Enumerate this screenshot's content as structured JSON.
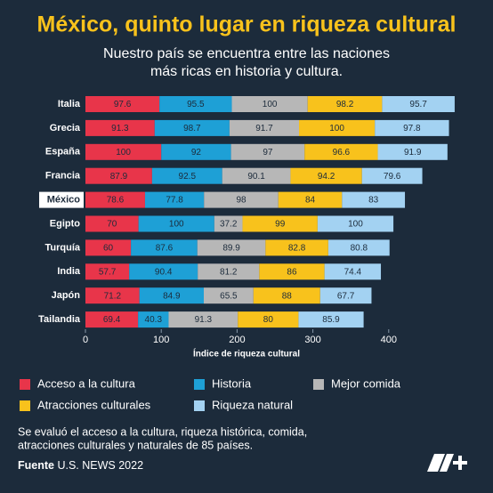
{
  "chart_data": {
    "type": "stacked_barh",
    "title": "México, quinto lugar en riqueza cultural",
    "subtitle": [
      "Nuestro país se encuentra entre las naciones",
      "más ricas en historia y cultura."
    ],
    "categories": [
      "Italia",
      "Grecia",
      "España",
      "Francia",
      "México",
      "Egipto",
      "Turquía",
      "India",
      "Japón",
      "Tailandia"
    ],
    "highlight": "México",
    "series": [
      {
        "name": "Acceso a la cultura",
        "color": "#e8354a",
        "values": [
          97.6,
          91.3,
          100,
          87.9,
          78.6,
          70,
          60,
          57.7,
          71.2,
          69.4
        ]
      },
      {
        "name": "Historia",
        "color": "#1ea0d6",
        "values": [
          95.5,
          98.7,
          92,
          92.5,
          77.8,
          100,
          87.6,
          90.4,
          84.9,
          40.3
        ]
      },
      {
        "name": "Mejor comida",
        "color": "#b7b7b7",
        "values": [
          100,
          91.7,
          97,
          90.1,
          98,
          37.2,
          89.9,
          81.2,
          65.5,
          91.3
        ]
      },
      {
        "name": "Atracciones culturales",
        "color": "#f8c21c",
        "values": [
          98.2,
          100,
          96.6,
          94.2,
          84,
          99,
          82.8,
          86,
          88,
          80
        ]
      },
      {
        "name": "Riqueza natural",
        "color": "#a3d2f2",
        "values": [
          95.7,
          97.8,
          91.9,
          79.6,
          83,
          100,
          80.8,
          74.4,
          67.7,
          85.9
        ]
      }
    ],
    "xlabel": "Índice de riqueza cultural",
    "xlim": [
      0,
      500
    ],
    "xticks": [
      0,
      100,
      200,
      300,
      400
    ],
    "note": [
      "Se evaluó el acceso a la cultura, riqueza histórica, comida,",
      "atracciones culturales y naturales de 85 países."
    ],
    "source_label": "Fuente",
    "source": "U.S. NEWS 2022"
  }
}
